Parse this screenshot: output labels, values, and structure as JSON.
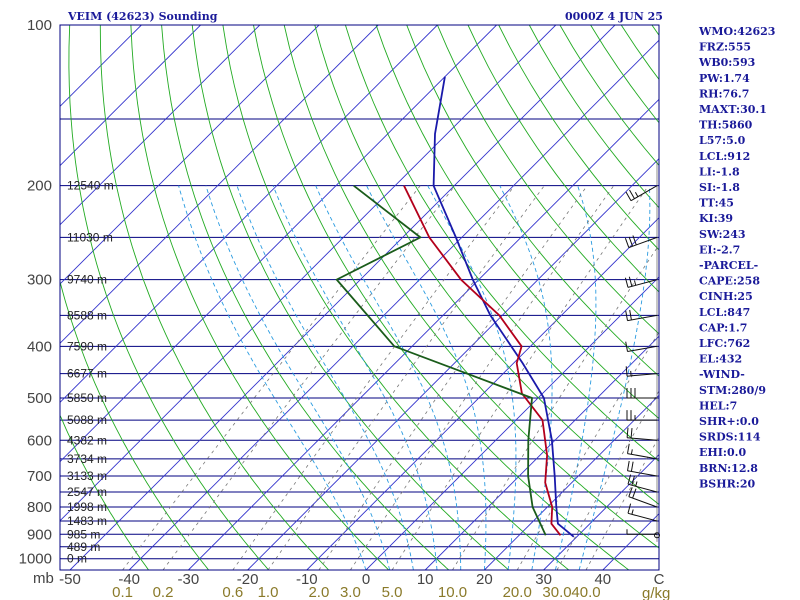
{
  "header": {
    "station": "VEIM (42623) Sounding",
    "time": "0000Z  4 JUN 25"
  },
  "indices": [
    "WMO:42623",
    "FRZ:555",
    "WB0:593",
    "PW:1.74",
    "RH:76.7",
    "MAXT:30.1",
    "TH:5860",
    "L57:5.0",
    "LCL:912",
    "LI:-1.8",
    "SI:-1.8",
    "TT:45",
    "KI:39",
    "SW:243",
    "EI:-2.7",
    "-PARCEL-",
    "CAPE:258",
    "CINH:25",
    "LCL:847",
    "CAP:1.7",
    "LFC:762",
    "EL:432",
    "-WIND-",
    "STM:280/9",
    "HEL:7",
    "SHR+:0.0",
    "SRDS:114",
    "EHI:0.0",
    "BRN:12.8",
    "BSHR:20"
  ],
  "axis_units": {
    "pressure": "mb",
    "mixing_ratio": "g/kg"
  },
  "colors": {
    "isobar": "#000080",
    "isotherm": "#3333cc",
    "dry_adiabat": "#22aa22",
    "moist_adiabat": "#2a9be0",
    "mixing_ratio": "#777777",
    "temperature": "#b3001b",
    "dewpoint": "#1a5c1a",
    "parcel": "#1a1aaa"
  },
  "chart_data": {
    "type": "skew-t",
    "pressure_ticks": [
      100,
      200,
      300,
      400,
      500,
      600,
      700,
      800,
      900,
      1000
    ],
    "pressure_tick_labels": [
      "100",
      "200",
      "300",
      "400",
      "500",
      "600",
      "700",
      "800",
      "900",
      "1000"
    ],
    "temperature_ticks": [
      -50,
      -40,
      -30,
      -20,
      -10,
      0,
      10,
      20,
      30,
      40
    ],
    "temperature_tick_labels": [
      "-50",
      "-40",
      "-30",
      "-20",
      "-10",
      "0",
      "10",
      "20",
      "30",
      "40",
      "C"
    ],
    "mixing_ratio_labels": [
      "0.1",
      "0.2",
      "0.6",
      "1.0",
      "2.0",
      "3.0",
      "5.0",
      "10.0",
      "20.0",
      "30.0",
      "40.0"
    ],
    "height_levels": [
      {
        "p": 200,
        "label": "12540 m"
      },
      {
        "p": 250,
        "label": "11030 m"
      },
      {
        "p": 300,
        "label": "9740 m"
      },
      {
        "p": 350,
        "label": "8588 m"
      },
      {
        "p": 400,
        "label": "7590 m"
      },
      {
        "p": 450,
        "label": "6677 m"
      },
      {
        "p": 500,
        "label": "5850 m"
      },
      {
        "p": 550,
        "label": "5088 m"
      },
      {
        "p": 600,
        "label": "4382 m"
      },
      {
        "p": 650,
        "label": "3734 m"
      },
      {
        "p": 700,
        "label": "3133 m"
      },
      {
        "p": 750,
        "label": "2547 m"
      },
      {
        "p": 800,
        "label": "1998 m"
      },
      {
        "p": 850,
        "label": "1483 m"
      },
      {
        "p": 900,
        "label": "985 m"
      },
      {
        "p": 950,
        "label": "489 m"
      },
      {
        "p": 1000,
        "label": "0 m"
      }
    ],
    "temperature_profile": [
      {
        "p": 904,
        "t": 27.0
      },
      {
        "p": 860,
        "t": 23.5
      },
      {
        "p": 800,
        "t": 20.8
      },
      {
        "p": 720,
        "t": 15.5
      },
      {
        "p": 640,
        "t": 11.2
      },
      {
        "p": 550,
        "t": 4.5
      },
      {
        "p": 490,
        "t": -3.5
      },
      {
        "p": 430,
        "t": -9.5
      },
      {
        "p": 400,
        "t": -11.5
      },
      {
        "p": 350,
        "t": -20.5
      },
      {
        "p": 300,
        "t": -33.0
      },
      {
        "p": 250,
        "t": -45.5
      },
      {
        "p": 200,
        "t": -58.5
      }
    ],
    "dewpoint_profile": [
      {
        "p": 904,
        "td": 24.5
      },
      {
        "p": 800,
        "td": 17.5
      },
      {
        "p": 700,
        "td": 11.5
      },
      {
        "p": 600,
        "td": 5.5
      },
      {
        "p": 500,
        "td": -1.0
      },
      {
        "p": 400,
        "td": -33.0
      },
      {
        "p": 300,
        "td": -54.0
      },
      {
        "p": 250,
        "td": -47.0
      },
      {
        "p": 200,
        "td": -67.0
      }
    ],
    "parcel_profile": [
      {
        "p": 910,
        "t": 29.5
      },
      {
        "p": 860,
        "t": 24.6
      },
      {
        "p": 800,
        "t": 21.5
      },
      {
        "p": 700,
        "t": 16.0
      },
      {
        "p": 600,
        "t": 9.5
      },
      {
        "p": 500,
        "t": 1.0
      },
      {
        "p": 430,
        "t": -8.5
      },
      {
        "p": 350,
        "t": -22.0
      },
      {
        "p": 300,
        "t": -31.0
      },
      {
        "p": 250,
        "t": -41.0
      },
      {
        "p": 200,
        "t": -53.5
      },
      {
        "p": 160,
        "t": -62.0
      },
      {
        "p": 125,
        "t": -70.0
      }
    ],
    "wind_barbs": [
      {
        "p": 900,
        "dir": 270,
        "spd": 5
      },
      {
        "p": 850,
        "dir": 285,
        "spd": 15
      },
      {
        "p": 800,
        "dir": 290,
        "spd": 20
      },
      {
        "p": 750,
        "dir": 285,
        "spd": 25
      },
      {
        "p": 700,
        "dir": 280,
        "spd": 20
      },
      {
        "p": 650,
        "dir": 280,
        "spd": 15
      },
      {
        "p": 600,
        "dir": 275,
        "spd": 20
      },
      {
        "p": 550,
        "dir": 270,
        "spd": 25
      },
      {
        "p": 500,
        "dir": 270,
        "spd": 30
      },
      {
        "p": 450,
        "dir": 265,
        "spd": 15
      },
      {
        "p": 400,
        "dir": 260,
        "spd": 10
      },
      {
        "p": 350,
        "dir": 260,
        "spd": 20
      },
      {
        "p": 300,
        "dir": 255,
        "spd": 25
      },
      {
        "p": 250,
        "dir": 250,
        "spd": 30
      },
      {
        "p": 200,
        "dir": 240,
        "spd": 25
      }
    ]
  }
}
